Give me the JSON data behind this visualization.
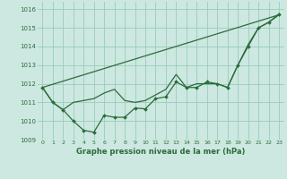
{
  "background_color": "#cce8e0",
  "grid_color": "#99ccbb",
  "line_color": "#2d6b3c",
  "xlabel": "Graphe pression niveau de la mer (hPa)",
  "xlim": [
    -0.5,
    23.5
  ],
  "ylim": [
    1009.0,
    1016.4
  ],
  "yticks": [
    1009,
    1010,
    1011,
    1012,
    1013,
    1014,
    1015,
    1016
  ],
  "xticks": [
    0,
    1,
    2,
    3,
    4,
    5,
    6,
    7,
    8,
    9,
    10,
    11,
    12,
    13,
    14,
    15,
    16,
    17,
    18,
    19,
    20,
    21,
    22,
    23
  ],
  "series_straight": {
    "x": [
      0,
      23
    ],
    "y": [
      1011.8,
      1015.7
    ]
  },
  "series_middle": {
    "x": [
      0,
      1,
      2,
      3,
      4,
      5,
      6,
      7,
      8,
      9,
      10,
      11,
      12,
      13,
      14,
      15,
      16,
      17,
      18,
      19,
      20,
      21,
      22,
      23
    ],
    "y": [
      1011.8,
      1011.0,
      1010.6,
      1011.0,
      1011.1,
      1011.2,
      1011.5,
      1011.7,
      1011.1,
      1011.0,
      1011.1,
      1011.4,
      1011.7,
      1012.5,
      1011.8,
      1012.0,
      1012.0,
      1012.0,
      1011.8,
      1013.0,
      1014.1,
      1015.0,
      1015.3,
      1015.7
    ]
  },
  "series_markers": {
    "x": [
      0,
      1,
      2,
      3,
      4,
      5,
      6,
      7,
      8,
      9,
      10,
      11,
      12,
      13,
      14,
      15,
      16,
      17,
      18,
      19,
      20,
      21,
      22,
      23
    ],
    "y": [
      1011.8,
      1011.0,
      1010.6,
      1010.0,
      1009.5,
      1009.4,
      1010.3,
      1010.2,
      1010.2,
      1010.7,
      1010.65,
      1011.2,
      1011.3,
      1012.1,
      1011.8,
      1011.8,
      1012.1,
      1012.0,
      1011.8,
      1013.0,
      1014.0,
      1015.0,
      1015.3,
      1015.75
    ]
  }
}
